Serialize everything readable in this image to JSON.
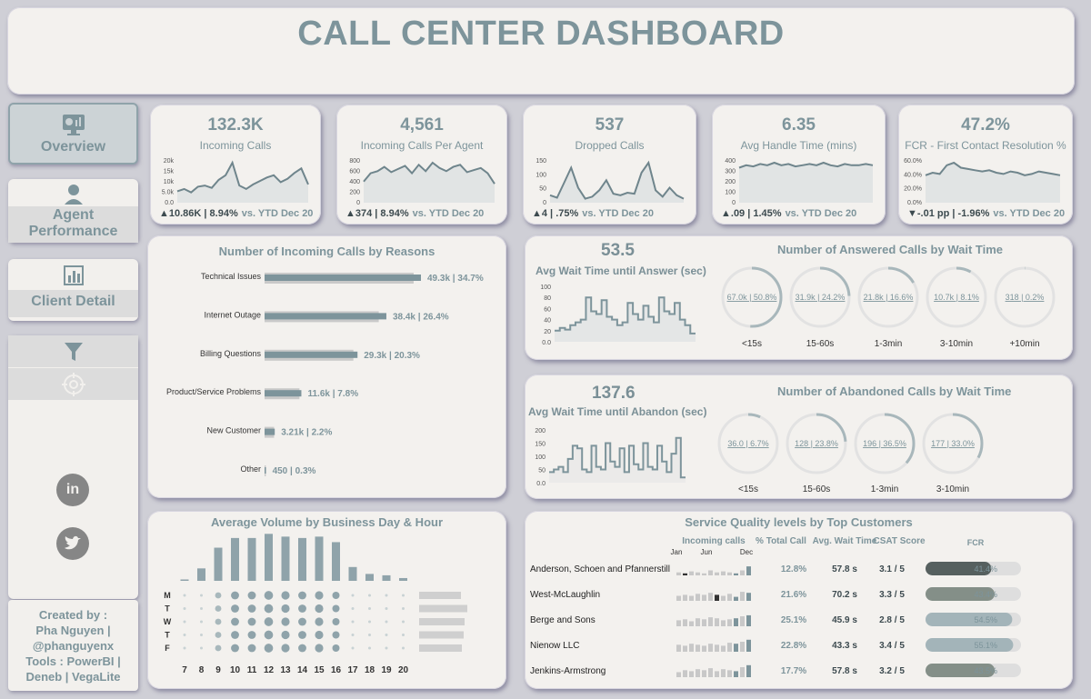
{
  "title": "CALL CENTER DASHBOARD",
  "nav": {
    "overview": "Overview",
    "agent_line1": "Agent",
    "agent_line2": "Performance",
    "client": "Client Detail"
  },
  "credit": {
    "l1": "Created by :",
    "l2": "Pha Nguyen |",
    "l3": "@phanguyenx",
    "l4": "Tools : PowerBI |",
    "l5": "Deneb | VegaLite"
  },
  "kpis": [
    {
      "value": "132.3K",
      "label": "Incoming Calls",
      "delta": "▲10.86K",
      "pct": "8.94%",
      "vs": "vs. YTD Dec 20",
      "axis": [
        "20k",
        "15k",
        "10k",
        "5.0k",
        "0.0"
      ]
    },
    {
      "value": "4,561",
      "label": "Incoming Calls Per Agent",
      "delta": "▲374",
      "pct": "8.94%",
      "vs": "vs. YTD Dec 20",
      "axis": [
        "800",
        "600",
        "400",
        "200",
        "0"
      ]
    },
    {
      "value": "537",
      "label": "Dropped Calls",
      "delta": "▲4",
      "pct": ".75%",
      "vs": "vs. YTD Dec 20",
      "axis": [
        "150",
        "100",
        "50",
        "0"
      ]
    },
    {
      "value": "6.35",
      "label": "Avg Handle Time (mins)",
      "delta": "▲.09",
      "pct": "1.45%",
      "vs": "vs. YTD Dec 20",
      "axis": [
        "400",
        "300",
        "200",
        "100",
        "0"
      ]
    },
    {
      "value": "47.2%",
      "label": "FCR - First Contact Resolution %",
      "delta": "▼-.01 pp",
      "pct": "-1.96%",
      "vs": "vs. YTD Dec 20",
      "axis": [
        "60.0%",
        "40.0%",
        "20.0%",
        "0.0%"
      ]
    }
  ],
  "reasons": {
    "title": "Number of Incoming Calls by Reasons",
    "items": [
      {
        "name": "Technical Issues",
        "label": "49.3k | 34.7%",
        "value": 49.3,
        "prev": 47
      },
      {
        "name": "Internet Outage",
        "label": "38.4k | 26.4%",
        "value": 38.4,
        "prev": 36
      },
      {
        "name": "Billing Questions",
        "label": "29.3k | 20.3%",
        "value": 29.3,
        "prev": 28
      },
      {
        "name": "Product/Service Problems",
        "label": "11.6k | 7.8%",
        "value": 11.6,
        "prev": 11
      },
      {
        "name": "New Customer",
        "label": "3.21k | 2.2%",
        "value": 3.21,
        "prev": 3
      },
      {
        "name": "Other",
        "label": "450 | 0.3%",
        "value": 0.45,
        "prev": 0.4
      }
    ]
  },
  "answer": {
    "value": "53.5",
    "label": "Avg Wait Time until Answer (sec)",
    "section_title": "Number of Answered Calls by Wait Time",
    "axis": [
      "100",
      "80",
      "60",
      "40",
      "20",
      "0.0"
    ],
    "rings": [
      {
        "label": "67.0k | 50.8%",
        "cat": "<15s",
        "pct": 50.8
      },
      {
        "label": "31.9k | 24.2%",
        "cat": "15-60s",
        "pct": 24.2
      },
      {
        "label": "21.8k | 16.6%",
        "cat": "1-3min",
        "pct": 16.6
      },
      {
        "label": "10.7k | 8.1%",
        "cat": "3-10min",
        "pct": 8.1
      },
      {
        "label": "318 | 0.2%",
        "cat": "+10min",
        "pct": 0.2
      }
    ]
  },
  "abandon": {
    "value": "137.6",
    "label": "Avg Wait Time until Abandon (sec)",
    "section_title": "Number of Abandoned Calls by Wait Time",
    "axis": [
      "200",
      "150",
      "100",
      "50",
      "0.0"
    ],
    "rings": [
      {
        "label": "36.0 | 6.7%",
        "cat": "<15s",
        "pct": 6.7
      },
      {
        "label": "128 | 23.8%",
        "cat": "15-60s",
        "pct": 23.8
      },
      {
        "label": "196 | 36.5%",
        "cat": "1-3min",
        "pct": 36.5
      },
      {
        "label": "177 | 33.0%",
        "cat": "3-10min",
        "pct": 33.0
      }
    ]
  },
  "volume": {
    "title": "Average Volume by Business Day & Hour",
    "days": [
      "M",
      "T",
      "W",
      "T",
      "F"
    ],
    "hours": [
      "7",
      "8",
      "9",
      "10",
      "11",
      "12",
      "13",
      "14",
      "15",
      "16",
      "17",
      "18",
      "19",
      "20"
    ],
    "bars": [
      2,
      18,
      48,
      62,
      62,
      68,
      64,
      62,
      64,
      56,
      20,
      10,
      8,
      4
    ]
  },
  "quality": {
    "title": "Service Quality levels by Top Customers",
    "col_incoming": "Incoming calls",
    "col_pct": "% Total Call",
    "col_wait": "Avg. Wait Time",
    "col_csat": "CSAT Score",
    "col_fcr": "FCR",
    "months": [
      "Jan",
      "Jun",
      "Dec"
    ],
    "rows": [
      {
        "name": "Anderson, Schoen and Pfannerstill",
        "pct": "12.8%",
        "wait": "57.8 s",
        "csat": "3.1 / 5",
        "fcr": "41.4%",
        "fcr_val": 41.4,
        "fcr_color": "#56605f"
      },
      {
        "name": "West-McLaughlin",
        "pct": "21.6%",
        "wait": "70.2 s",
        "csat": "3.3 / 5",
        "fcr": "43.4%",
        "fcr_val": 43.4,
        "fcr_color": "#848f88"
      },
      {
        "name": "Berge and Sons",
        "pct": "25.1%",
        "wait": "45.9 s",
        "csat": "2.8 / 5",
        "fcr": "54.5%",
        "fcr_val": 54.5,
        "fcr_color": "#a3b4b9"
      },
      {
        "name": "Nienow LLC",
        "pct": "22.8%",
        "wait": "43.3 s",
        "csat": "3.4 / 5",
        "fcr": "55.1%",
        "fcr_val": 55.1,
        "fcr_color": "#a3b4b9"
      },
      {
        "name": "Jenkins-Armstrong",
        "pct": "17.7%",
        "wait": "57.8 s",
        "csat": "3.2 / 5",
        "fcr": "43.5%",
        "fcr_val": 43.5,
        "fcr_color": "#848f88"
      }
    ]
  }
}
